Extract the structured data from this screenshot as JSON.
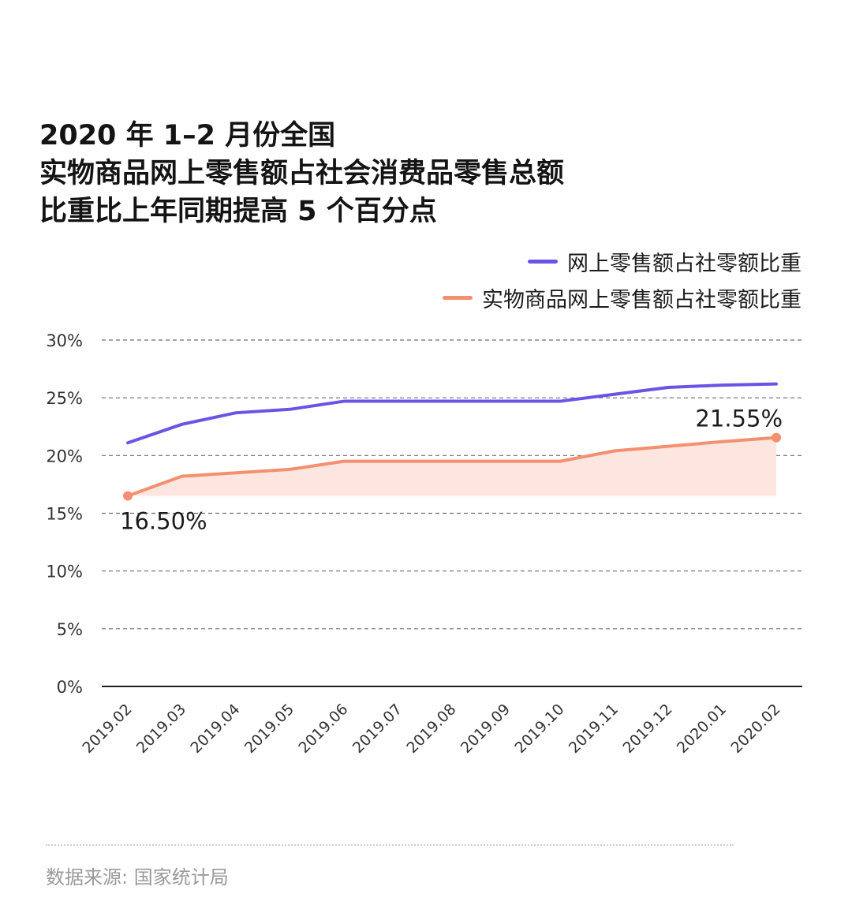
{
  "title": {
    "line1": "2020 年 1–2 月份全国",
    "line2": "实物商品网上零售额占社会消费品零售总额",
    "line3": "比重比上年同期提高 5 个百分点"
  },
  "legend": [
    {
      "label": "网上零售额占社零额比重",
      "color": "#6c53e6"
    },
    {
      "label": "实物商品网上零售额占社零额比重",
      "color": "#f4906f"
    }
  ],
  "source": "数据来源: 国家统计局",
  "chart_data": {
    "type": "line",
    "categories": [
      "2019.02",
      "2019.03",
      "2019.04",
      "2019.05",
      "2019.06",
      "2019.07",
      "2019.08",
      "2019.09",
      "2019.10",
      "2019.11",
      "2019.12",
      "2020.01",
      "2020.02"
    ],
    "series": [
      {
        "name": "网上零售额占社零额比重",
        "color": "#6c53e6",
        "values": [
          21.1,
          22.7,
          23.7,
          24.0,
          24.7,
          24.7,
          24.7,
          24.7,
          24.7,
          25.3,
          25.9,
          26.1,
          26.2
        ]
      },
      {
        "name": "实物商品网上零售额占社零额比重",
        "color": "#f4906f",
        "fill": "#fde6df",
        "values": [
          16.5,
          18.2,
          18.5,
          18.8,
          19.5,
          19.5,
          19.5,
          19.5,
          19.5,
          20.4,
          20.8,
          21.2,
          21.55
        ]
      }
    ],
    "annotations": [
      {
        "series": 1,
        "index": 0,
        "text": "16.50%"
      },
      {
        "series": 1,
        "index": 12,
        "text": "21.55%"
      }
    ],
    "y_ticks": [
      "0%",
      "5%",
      "10%",
      "15%",
      "20%",
      "25%",
      "30%"
    ],
    "ylim": [
      0,
      30
    ],
    "grid": true
  }
}
